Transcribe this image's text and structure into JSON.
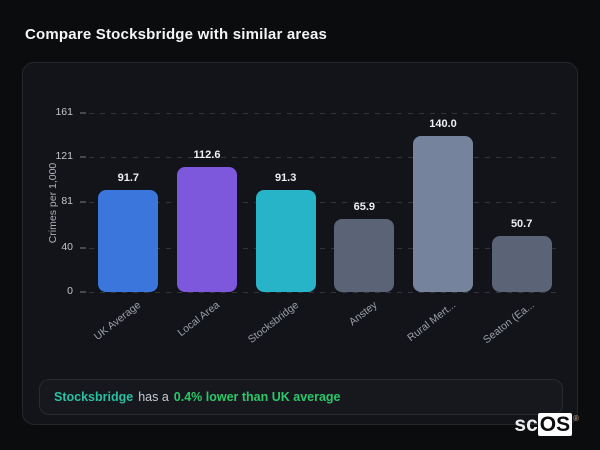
{
  "page": {
    "title": "Compare Stocksbridge with similar areas"
  },
  "chart_data": {
    "type": "bar",
    "title": "Compare Stocksbridge with similar areas",
    "categories": [
      "UK Average",
      "Local Area",
      "Stocksbridge",
      "Anstey",
      "Rural Mert...",
      "Seaton (Ea..."
    ],
    "values": [
      91.7,
      112.6,
      91.3,
      65.9,
      140.0,
      50.7
    ],
    "bar_colors": [
      "#3a76db",
      "#7e58dc",
      "#28b4c8",
      "#5b6477",
      "#76839d",
      "#5b6477"
    ],
    "xlabel": "",
    "ylabel": "Crimes per 1,000",
    "ylim": [
      0,
      161
    ],
    "yticks": [
      0,
      40,
      81,
      121,
      161
    ],
    "grid": "horizontal-dashed",
    "legend": "none"
  },
  "footer": {
    "highlight_area": "Stocksbridge",
    "middle_text": "has a",
    "comparison_text": "0.4% lower than UK average",
    "highlight_color": "#2abfa3",
    "comparison_color": "#2bc76a"
  },
  "logo": {
    "prefix": "sc",
    "suffix": "OS",
    "registered_mark": "®"
  }
}
